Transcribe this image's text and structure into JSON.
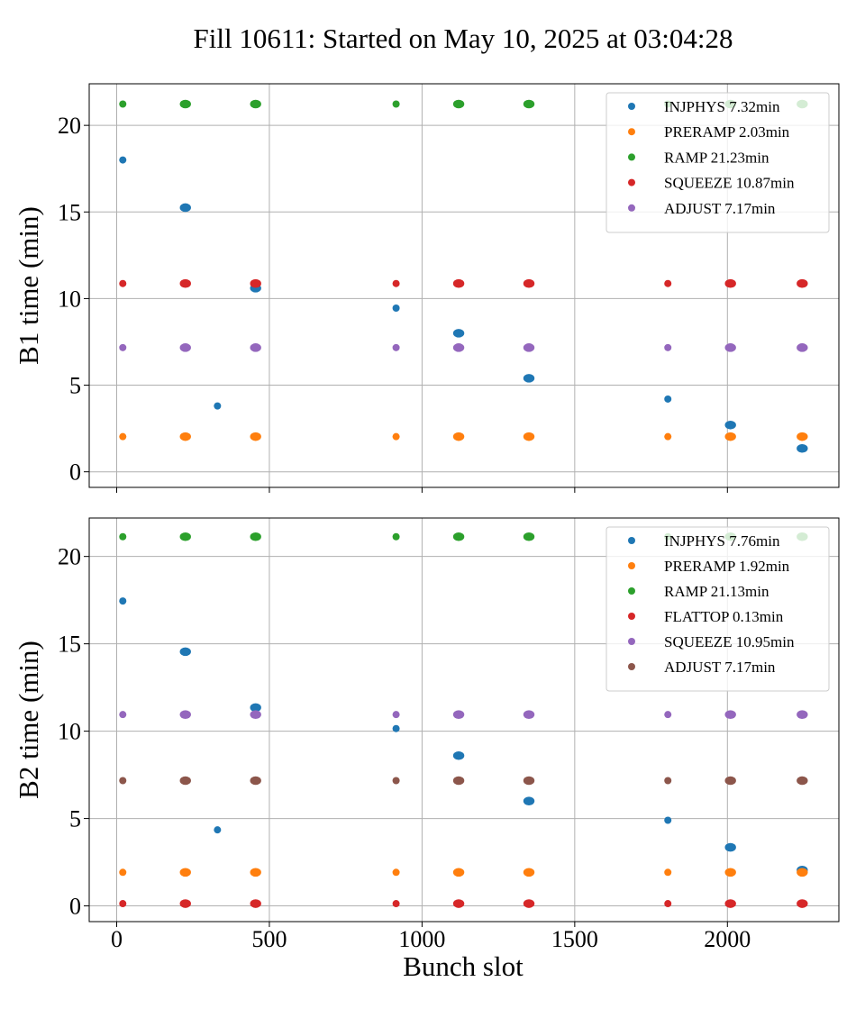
{
  "figure": {
    "title": "Fill 10611: Started on May 10, 2025 at 03:04:28",
    "xlabel": "Bunch slot"
  },
  "chart_data": [
    {
      "type": "scatter",
      "id": "b1",
      "ylabel": "B1 time (min)",
      "xlim": [
        -90,
        2365
      ],
      "ylim": [
        -0.9,
        22.4
      ],
      "xticks": [
        0,
        500,
        1000,
        1500,
        2000
      ],
      "yticks": [
        0,
        5,
        10,
        15,
        20
      ],
      "show_xtick_labels": false,
      "grid": true,
      "legend_position": "top-right",
      "series": [
        {
          "name": "INJPHYS 7.32min",
          "color": "#1f77b4",
          "points": [
            [
              20,
              18.0,
              1
            ],
            [
              225,
              15.25,
              2
            ],
            [
              455,
              10.6,
              2
            ],
            [
              330,
              3.8,
              1
            ],
            [
              915,
              9.45,
              1
            ],
            [
              1120,
              8.0,
              2
            ],
            [
              1350,
              5.4,
              2
            ],
            [
              1805,
              4.2,
              1
            ],
            [
              2010,
              2.7,
              2
            ],
            [
              2245,
              1.35,
              2
            ]
          ]
        },
        {
          "name": "PRERAMP 2.03min",
          "color": "#ff7f0e",
          "points": [
            [
              20,
              2.03,
              1
            ],
            [
              225,
              2.03,
              2
            ],
            [
              455,
              2.03,
              2
            ],
            [
              915,
              2.03,
              1
            ],
            [
              1120,
              2.03,
              2
            ],
            [
              1350,
              2.03,
              2
            ],
            [
              1805,
              2.03,
              1
            ],
            [
              2010,
              2.03,
              2
            ],
            [
              2245,
              2.03,
              2
            ]
          ]
        },
        {
          "name": "RAMP 21.23min",
          "color": "#2ca02c",
          "points": [
            [
              20,
              21.23,
              1
            ],
            [
              225,
              21.23,
              2
            ],
            [
              455,
              21.23,
              2
            ],
            [
              915,
              21.23,
              1
            ],
            [
              1120,
              21.23,
              2
            ],
            [
              1350,
              21.23,
              2
            ],
            [
              1805,
              21.23,
              1
            ],
            [
              2010,
              21.23,
              2
            ],
            [
              2245,
              21.23,
              2
            ]
          ]
        },
        {
          "name": "SQUEEZE 10.87min",
          "color": "#d62728",
          "points": [
            [
              20,
              10.87,
              1
            ],
            [
              225,
              10.87,
              2
            ],
            [
              455,
              10.87,
              2
            ],
            [
              915,
              10.87,
              1
            ],
            [
              1120,
              10.87,
              2
            ],
            [
              1350,
              10.87,
              2
            ],
            [
              1805,
              10.87,
              1
            ],
            [
              2010,
              10.87,
              2
            ],
            [
              2245,
              10.87,
              2
            ]
          ]
        },
        {
          "name": "ADJUST 7.17min",
          "color": "#9467bd",
          "points": [
            [
              20,
              7.17,
              1
            ],
            [
              225,
              7.17,
              2
            ],
            [
              455,
              7.17,
              2
            ],
            [
              915,
              7.17,
              1
            ],
            [
              1120,
              7.17,
              2
            ],
            [
              1350,
              7.17,
              2
            ],
            [
              1805,
              7.17,
              1
            ],
            [
              2010,
              7.17,
              2
            ],
            [
              2245,
              7.17,
              2
            ]
          ]
        }
      ]
    },
    {
      "type": "scatter",
      "id": "b2",
      "ylabel": "B2 time (min)",
      "xlim": [
        -90,
        2365
      ],
      "ylim": [
        -0.9,
        22.2
      ],
      "xticks": [
        0,
        500,
        1000,
        1500,
        2000
      ],
      "yticks": [
        0,
        5,
        10,
        15,
        20
      ],
      "show_xtick_labels": true,
      "grid": true,
      "legend_position": "top-right",
      "series": [
        {
          "name": "INJPHYS 7.76min",
          "color": "#1f77b4",
          "points": [
            [
              20,
              17.45,
              1
            ],
            [
              225,
              14.55,
              2
            ],
            [
              455,
              11.35,
              2
            ],
            [
              330,
              4.35,
              1
            ],
            [
              915,
              10.15,
              1
            ],
            [
              1120,
              8.6,
              2
            ],
            [
              1350,
              6.0,
              2
            ],
            [
              1805,
              4.9,
              1
            ],
            [
              2010,
              3.35,
              2
            ],
            [
              2245,
              2.05,
              2
            ]
          ]
        },
        {
          "name": "PRERAMP 1.92min",
          "color": "#ff7f0e",
          "points": [
            [
              20,
              1.92,
              1
            ],
            [
              225,
              1.92,
              2
            ],
            [
              455,
              1.92,
              2
            ],
            [
              915,
              1.92,
              1
            ],
            [
              1120,
              1.92,
              2
            ],
            [
              1350,
              1.92,
              2
            ],
            [
              1805,
              1.92,
              1
            ],
            [
              2010,
              1.92,
              2
            ],
            [
              2245,
              1.92,
              2
            ]
          ]
        },
        {
          "name": "RAMP 21.13min",
          "color": "#2ca02c",
          "points": [
            [
              20,
              21.13,
              1
            ],
            [
              225,
              21.13,
              2
            ],
            [
              455,
              21.13,
              2
            ],
            [
              915,
              21.13,
              1
            ],
            [
              1120,
              21.13,
              2
            ],
            [
              1350,
              21.13,
              2
            ],
            [
              1805,
              21.13,
              1
            ],
            [
              2010,
              21.13,
              2
            ],
            [
              2245,
              21.13,
              2
            ]
          ]
        },
        {
          "name": "FLATTOP 0.13min",
          "color": "#d62728",
          "points": [
            [
              20,
              0.13,
              1
            ],
            [
              225,
              0.13,
              2
            ],
            [
              455,
              0.13,
              2
            ],
            [
              915,
              0.13,
              1
            ],
            [
              1120,
              0.13,
              2
            ],
            [
              1350,
              0.13,
              2
            ],
            [
              1805,
              0.13,
              1
            ],
            [
              2010,
              0.13,
              2
            ],
            [
              2245,
              0.13,
              2
            ]
          ]
        },
        {
          "name": "SQUEEZE 10.95min",
          "color": "#9467bd",
          "points": [
            [
              20,
              10.95,
              1
            ],
            [
              225,
              10.95,
              2
            ],
            [
              455,
              10.95,
              2
            ],
            [
              915,
              10.95,
              1
            ],
            [
              1120,
              10.95,
              2
            ],
            [
              1350,
              10.95,
              2
            ],
            [
              1805,
              10.95,
              1
            ],
            [
              2010,
              10.95,
              2
            ],
            [
              2245,
              10.95,
              2
            ]
          ]
        },
        {
          "name": "ADJUST 7.17min",
          "color": "#8c564b",
          "points": [
            [
              20,
              7.17,
              1
            ],
            [
              225,
              7.17,
              2
            ],
            [
              455,
              7.17,
              2
            ],
            [
              915,
              7.17,
              1
            ],
            [
              1120,
              7.17,
              2
            ],
            [
              1350,
              7.17,
              2
            ],
            [
              1805,
              7.17,
              1
            ],
            [
              2010,
              7.17,
              2
            ],
            [
              2245,
              7.17,
              2
            ]
          ]
        }
      ]
    }
  ]
}
